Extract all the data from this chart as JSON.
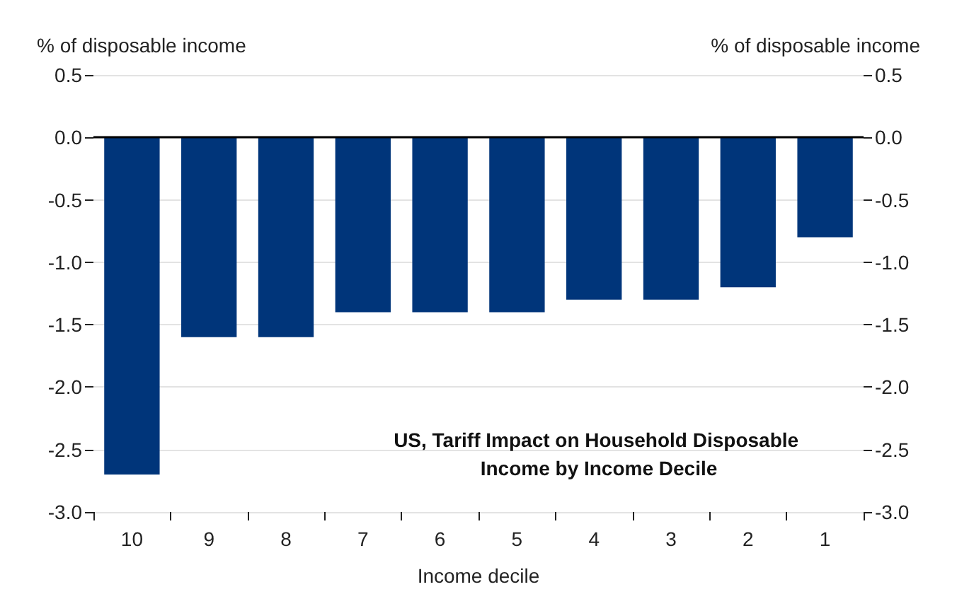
{
  "chart_data": {
    "type": "bar",
    "title": "US, Tariff Impact on Household Disposable Income by Income Decile",
    "xlabel": "Income decile",
    "ylabel": "% of disposable income",
    "y2label": "% of disposable income",
    "categories": [
      "10",
      "9",
      "8",
      "7",
      "6",
      "5",
      "4",
      "3",
      "2",
      "1"
    ],
    "series": [
      {
        "color": "#00357a",
        "values": [
          -2.7,
          -1.6,
          -1.6,
          -1.4,
          -1.4,
          -1.4,
          -1.3,
          -1.3,
          -1.2,
          -0.8
        ]
      }
    ],
    "ylim": [
      -3,
      0.5
    ],
    "yticks": [
      {
        "value": -3,
        "label": "-3.0"
      },
      -2.5,
      {
        "value": -2,
        "label": "-2.0"
      },
      -1.5,
      {
        "value": -1,
        "label": "-1.0"
      },
      -0.5,
      {
        "value": 0,
        "label": "0.0"
      },
      0.5
    ],
    "y2lim": [
      -3,
      0.5
    ],
    "y2ticks": [
      {
        "value": -3,
        "label": "-3.0"
      },
      -2.5,
      {
        "value": -2,
        "label": "-2.0"
      },
      -1.5,
      {
        "value": -1,
        "label": "-1.0"
      },
      -0.5,
      {
        "value": 0,
        "label": "0.0"
      },
      0.5
    ],
    "grid": "y"
  }
}
